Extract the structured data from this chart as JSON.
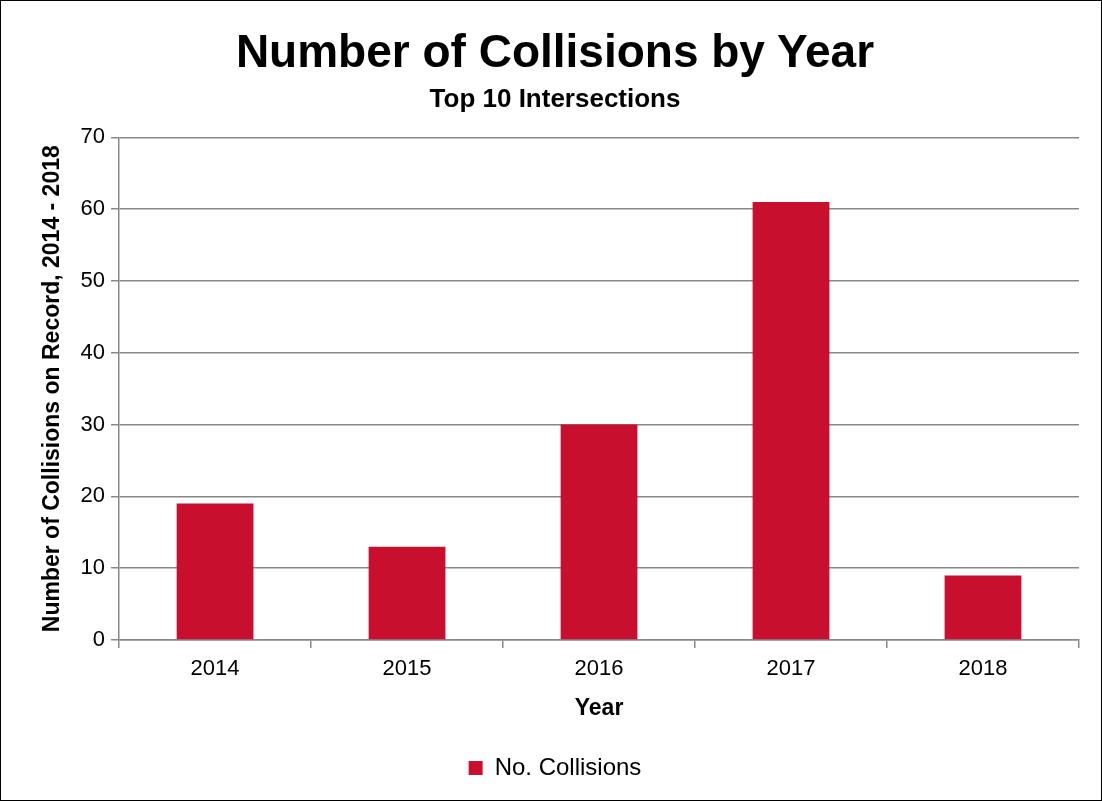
{
  "chart_data": {
    "type": "bar",
    "title": "Number of Collisions by Year",
    "subtitle": "Top 10 Intersections",
    "xlabel": "Year",
    "ylabel": "Number of Collisions on Record, 2014 - 2018",
    "categories": [
      "2014",
      "2015",
      "2016",
      "2017",
      "2018"
    ],
    "series": [
      {
        "name": "No. Collisions",
        "color": "#c8102e",
        "values": [
          19,
          13,
          30,
          61,
          9
        ]
      }
    ],
    "ylim": [
      0,
      70
    ],
    "yticks": [
      0,
      10,
      20,
      30,
      40,
      50,
      60,
      70
    ],
    "grid": "y",
    "legend": "bottom"
  }
}
